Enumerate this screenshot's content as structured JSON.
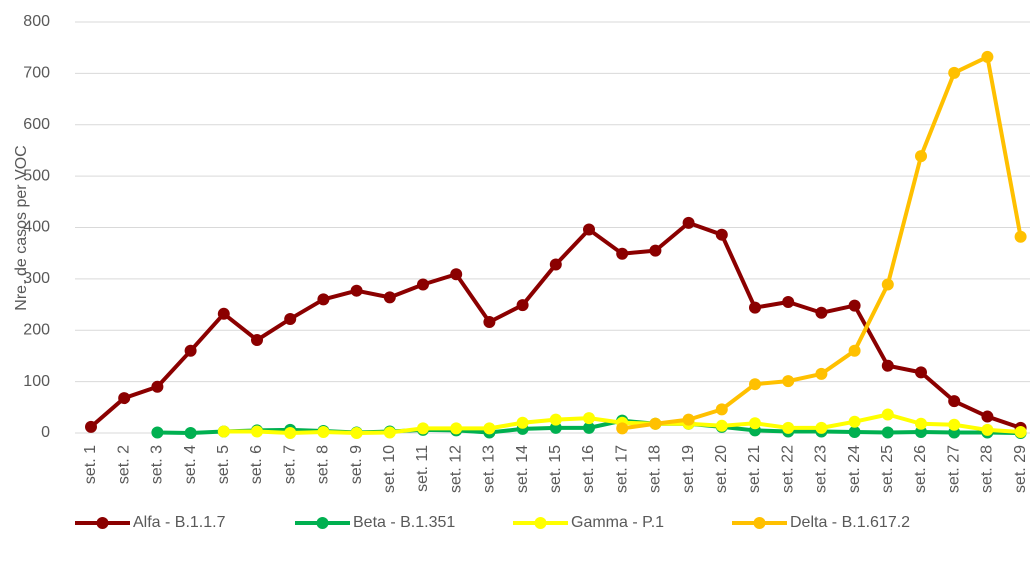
{
  "chart_data": {
    "type": "line",
    "y_label": "Nre. de casos per VOC",
    "categories": [
      "set. 1",
      "set. 2",
      "set. 3",
      "set. 4",
      "set. 5",
      "set. 6",
      "set. 7",
      "set. 8",
      "set. 9",
      "set. 10",
      "set. 11",
      "set. 12",
      "set. 13",
      "set. 14",
      "set. 15",
      "set. 16",
      "set. 17",
      "set. 18",
      "set. 19",
      "set. 20",
      "set. 21",
      "set. 22",
      "set. 23",
      "set. 24",
      "set. 25",
      "set. 26",
      "set. 27",
      "set. 28",
      "set. 29"
    ],
    "series": [
      {
        "name": "Alfa - B.1.1.7",
        "color": "#8b0000",
        "values": [
          12,
          68,
          90,
          160,
          232,
          181,
          222,
          260,
          277,
          264,
          289,
          309,
          216,
          249,
          328,
          396,
          349,
          355,
          409,
          386,
          244,
          255,
          234,
          248,
          131,
          118,
          62,
          32,
          10
        ]
      },
      {
        "name": "Beta - B.1.351",
        "color": "#00b050",
        "values": [
          null,
          null,
          1,
          0,
          3,
          5,
          6,
          4,
          1,
          3,
          6,
          5,
          1,
          8,
          10,
          10,
          24,
          18,
          18,
          12,
          5,
          3,
          3,
          2,
          1,
          2,
          1,
          1,
          0
        ]
      },
      {
        "name": "Gamma - P.1",
        "color": "#ffff00",
        "values": [
          null,
          null,
          null,
          null,
          3,
          3,
          0,
          2,
          0,
          1,
          9,
          9,
          9,
          20,
          26,
          29,
          20,
          18,
          18,
          14,
          19,
          10,
          10,
          22,
          36,
          18,
          16,
          6,
          2
        ]
      },
      {
        "name": "Delta - B.1.617.2",
        "color": "#ffc000",
        "values": [
          null,
          null,
          null,
          null,
          null,
          null,
          null,
          null,
          null,
          null,
          null,
          null,
          null,
          null,
          null,
          null,
          9,
          18,
          26,
          46,
          95,
          101,
          115,
          160,
          289,
          539,
          701,
          732,
          382
        ]
      }
    ],
    "ylim": [
      0,
      800
    ],
    "yticks": [
      0,
      100,
      200,
      300,
      400,
      500,
      600,
      700,
      800
    ],
    "grid": true,
    "legend": "bottom"
  }
}
